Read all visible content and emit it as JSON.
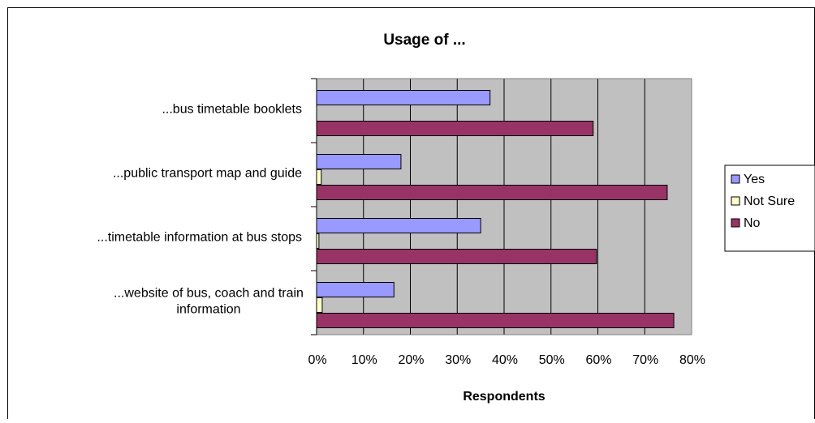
{
  "chart_data": {
    "type": "bar",
    "orientation": "horizontal",
    "title": "Usage of ...",
    "xlabel": "Respondents",
    "ylabel": "",
    "xlim": [
      0,
      0.8
    ],
    "x_ticks": [
      "0%",
      "10%",
      "20%",
      "30%",
      "40%",
      "50%",
      "60%",
      "70%",
      "80%"
    ],
    "grid": true,
    "legend_position": "right",
    "categories": [
      {
        "lines": [
          "...bus timetable booklets"
        ]
      },
      {
        "lines": [
          "...public transport map and guide"
        ]
      },
      {
        "lines": [
          "...timetable information at bus stops"
        ]
      },
      {
        "lines": [
          "...website of bus, coach and train",
          "information"
        ]
      }
    ],
    "series": [
      {
        "name": "Yes",
        "color": "#9999ff",
        "values": [
          0.37,
          0.18,
          0.35,
          0.165
        ]
      },
      {
        "name": "Not Sure",
        "color": "#ffffcc",
        "values": [
          0.0,
          0.01,
          0.005,
          0.012
        ]
      },
      {
        "name": "No",
        "color": "#993366",
        "values": [
          0.59,
          0.748,
          0.597,
          0.762
        ]
      }
    ],
    "plot_background": "#c0c0c0"
  }
}
